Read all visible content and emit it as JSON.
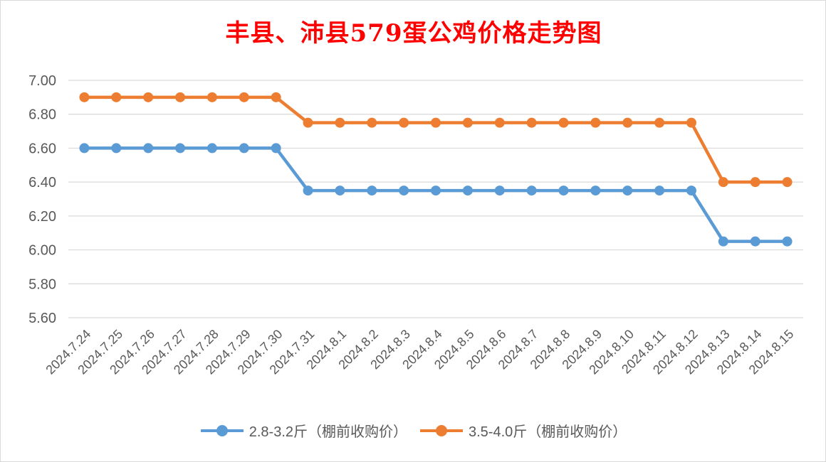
{
  "chart_data": {
    "type": "line",
    "title": "丰县、沛县579蛋公鸡价格走势图",
    "xlabel": "",
    "ylabel": "",
    "categories": [
      "2024.7.24",
      "2024.7.25",
      "2024.7.26",
      "2024.7.27",
      "2024.7.28",
      "2024.7.29",
      "2024.7.30",
      "2024.7.31",
      "2024.8.1",
      "2024.8.2",
      "2024.8.3",
      "2024.8.4",
      "2024.8.5",
      "2024.8.6",
      "2024.8.7",
      "2024.8.8",
      "2024.8.9",
      "2024.8.10",
      "2024.8.11",
      "2024.8.12",
      "2024.8.13",
      "2024.8.14",
      "2024.8.15"
    ],
    "series": [
      {
        "name": "2.8-3.2斤（棚前收购价）",
        "color": "#5b9bd5",
        "values": [
          6.6,
          6.6,
          6.6,
          6.6,
          6.6,
          6.6,
          6.6,
          6.35,
          6.35,
          6.35,
          6.35,
          6.35,
          6.35,
          6.35,
          6.35,
          6.35,
          6.35,
          6.35,
          6.35,
          6.35,
          6.05,
          6.05,
          6.05
        ]
      },
      {
        "name": "3.5-4.0斤（棚前收购价）",
        "color": "#ed7d31",
        "values": [
          6.9,
          6.9,
          6.9,
          6.9,
          6.9,
          6.9,
          6.9,
          6.75,
          6.75,
          6.75,
          6.75,
          6.75,
          6.75,
          6.75,
          6.75,
          6.75,
          6.75,
          6.75,
          6.75,
          6.75,
          6.4,
          6.4,
          6.4
        ]
      }
    ],
    "yticks": [
      "5.60",
      "5.80",
      "6.00",
      "6.20",
      "6.40",
      "6.60",
      "6.80",
      "7.00"
    ],
    "ylim": [
      5.6,
      7.0
    ],
    "grid": true,
    "legend_position": "bottom"
  }
}
